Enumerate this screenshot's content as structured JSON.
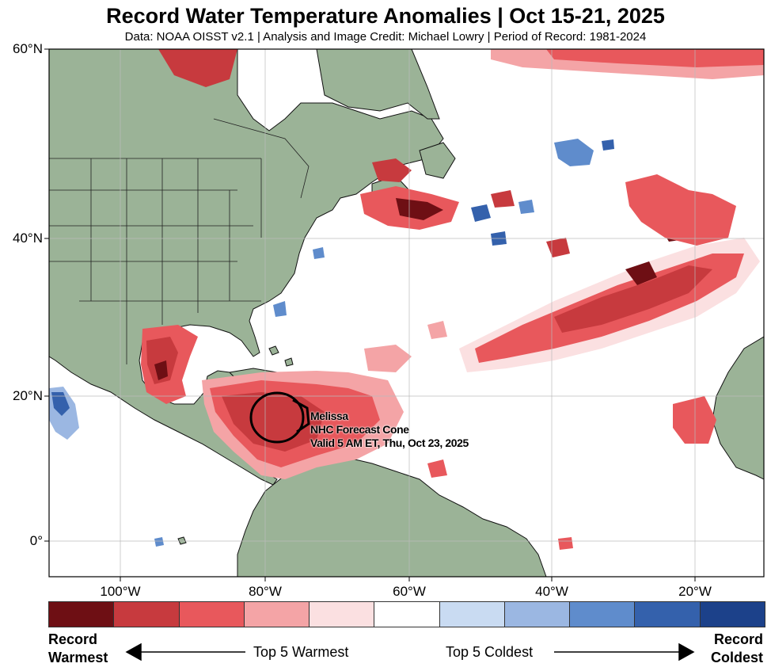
{
  "title": "Record Water Temperature Anomalies | Oct 15-21, 2025",
  "subtitle": "Data: NOAA OISST v2.1 | Analysis and Image Credit: Michael Lowry | Period of Record: 1981-2024",
  "lat_labels": [
    "60°N",
    "40°N",
    "20°N",
    "0°"
  ],
  "lon_labels": [
    "100°W",
    "80°W",
    "60°W",
    "40°W",
    "20°W"
  ],
  "storm": {
    "name": "Melissa",
    "line2": "NHC Forecast Cone",
    "line3": "Valid 5 AM ET, Thu, Oct 23, 2025"
  },
  "legend": {
    "left_label_line1": "Record",
    "left_label_line2": "Warmest",
    "right_label_line1": "Record",
    "right_label_line2": "Coldest",
    "warm_arrow_text": "Top 5 Warmest",
    "cold_arrow_text": "Top 5 Coldest",
    "colors": [
      "#6e0f14",
      "#c73a3e",
      "#e8585c",
      "#f4a4a6",
      "#fbe0e1",
      "#ffffff",
      "#c9dbf2",
      "#9bb7e2",
      "#5f8ccc",
      "#3461ac",
      "#1c418a"
    ]
  },
  "colors": {
    "land": "#9bb397",
    "ocean": "#ffffff"
  }
}
